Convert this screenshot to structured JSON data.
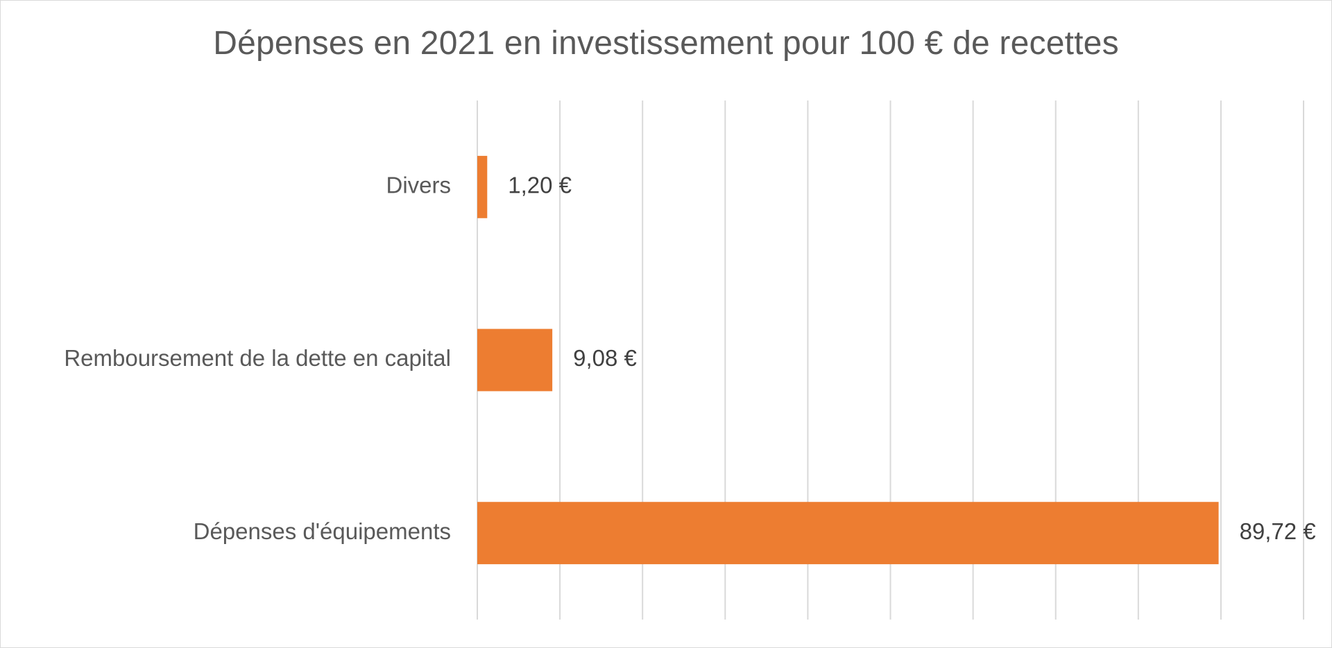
{
  "chart_data": {
    "type": "bar",
    "orientation": "horizontal",
    "title": "Dépenses en 2021 en investissement pour 100 € de recettes",
    "categories": [
      "Divers",
      "Remboursement de la dette en capital",
      "Dépenses d'équipements"
    ],
    "values": [
      1.2,
      9.08,
      89.72
    ],
    "data_labels": [
      "1,20 €",
      "9,08 €",
      "89,72 €"
    ],
    "xlim": [
      0,
      100
    ],
    "gridlines": true,
    "legend": "none",
    "bar_color": "#ED7D31",
    "gridline_color": "#D9D9D9"
  }
}
